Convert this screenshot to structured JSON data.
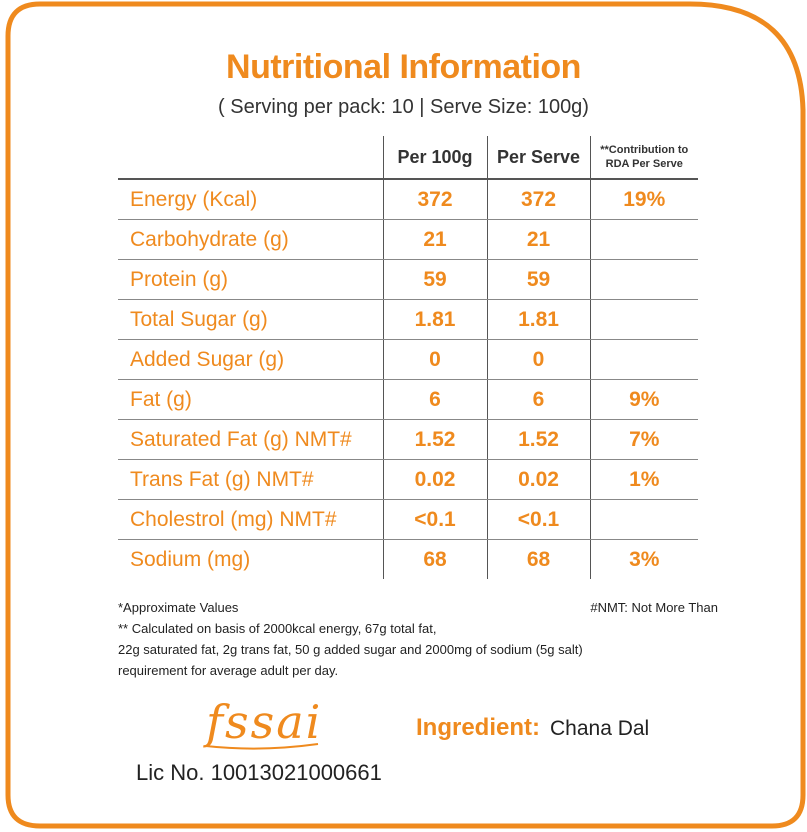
{
  "header": {
    "title": "Nutritional Information",
    "subtitle": "( Serving per pack: 10 | Serve Size: 100g)"
  },
  "table": {
    "columns": [
      "Per 100g",
      "Per Serve",
      "**Contribution to RDA Per Serve"
    ],
    "rows": [
      {
        "name": "Energy (Kcal)",
        "per100": "372",
        "perServe": "372",
        "rda": "19%"
      },
      {
        "name": "Carbohydrate (g)",
        "per100": "21",
        "perServe": "21",
        "rda": ""
      },
      {
        "name": "Protein (g)",
        "per100": "59",
        "perServe": "59",
        "rda": ""
      },
      {
        "name": "Total Sugar (g)",
        "per100": "1.81",
        "perServe": "1.81",
        "rda": ""
      },
      {
        "name": "Added Sugar (g)",
        "per100": "0",
        "perServe": "0",
        "rda": ""
      },
      {
        "name": "Fat (g)",
        "per100": "6",
        "perServe": "6",
        "rda": "9%"
      },
      {
        "name": "Saturated Fat (g) NMT#",
        "per100": "1.52",
        "perServe": "1.52",
        "rda": "7%"
      },
      {
        "name": "Trans Fat (g) NMT#",
        "per100": "0.02",
        "perServe": "0.02",
        "rda": "1%"
      },
      {
        "name": "Cholestrol (mg) NMT#",
        "per100": "<0.1",
        "perServe": "<0.1",
        "rda": ""
      },
      {
        "name": "Sodium (mg)",
        "per100": "68",
        "perServe": "68",
        "rda": "3%"
      }
    ]
  },
  "footnotes": {
    "approx": "*Approximate Values",
    "nmt": "#NMT: Not More Than",
    "line1": "** Calculated on basis of 2000kcal energy, 67g total fat,",
    "line2": "22g saturated fat, 2g trans fat, 50 g added sugar and 2000mg of sodium (5g salt)",
    "line3": "requirement for average adult per day."
  },
  "logo": {
    "text": "fssai"
  },
  "license": "Lic No. 10013021000661",
  "ingredient": {
    "label": "Ingredient:",
    "value": "Chana Dal"
  },
  "colors": {
    "accent": "#ef8a1e",
    "text": "#222222"
  }
}
